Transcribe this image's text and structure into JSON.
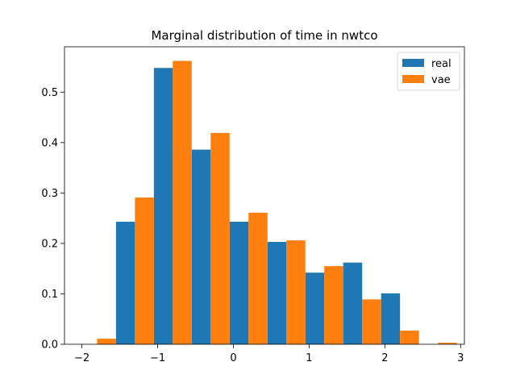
{
  "chart_data": {
    "type": "bar",
    "title": "Marginal distribution of time in nwtco",
    "xlabel": "",
    "ylabel": "",
    "xlim": [
      -2.23,
      3.05
    ],
    "ylim": [
      0,
      0.59
    ],
    "bin_width": 0.5,
    "x_ticks": [
      -2,
      -1,
      0,
      1,
      2,
      3
    ],
    "x_tick_labels": [
      "−2",
      "−1",
      "0",
      "1",
      "2",
      "3"
    ],
    "y_ticks": [
      0.0,
      0.1,
      0.2,
      0.3,
      0.4,
      0.5
    ],
    "y_tick_labels": [
      "0.0",
      "0.1",
      "0.2",
      "0.3",
      "0.4",
      "0.5"
    ],
    "legend_position": "top-right",
    "grid": false,
    "bin_left_edges": [
      -2.05,
      -1.55,
      -1.05,
      -0.55,
      -0.05,
      0.45,
      0.95,
      1.45,
      1.95,
      2.45
    ],
    "series": [
      {
        "name": "real",
        "color": "#1f77b4",
        "values": [
          0.0,
          0.243,
          0.548,
          0.386,
          0.243,
          0.203,
          0.142,
          0.162,
          0.101,
          0.0
        ]
      },
      {
        "name": "vae",
        "color": "#ff7f0e",
        "values": [
          0.011,
          0.291,
          0.562,
          0.419,
          0.261,
          0.206,
          0.155,
          0.089,
          0.027,
          0.003
        ]
      }
    ]
  }
}
